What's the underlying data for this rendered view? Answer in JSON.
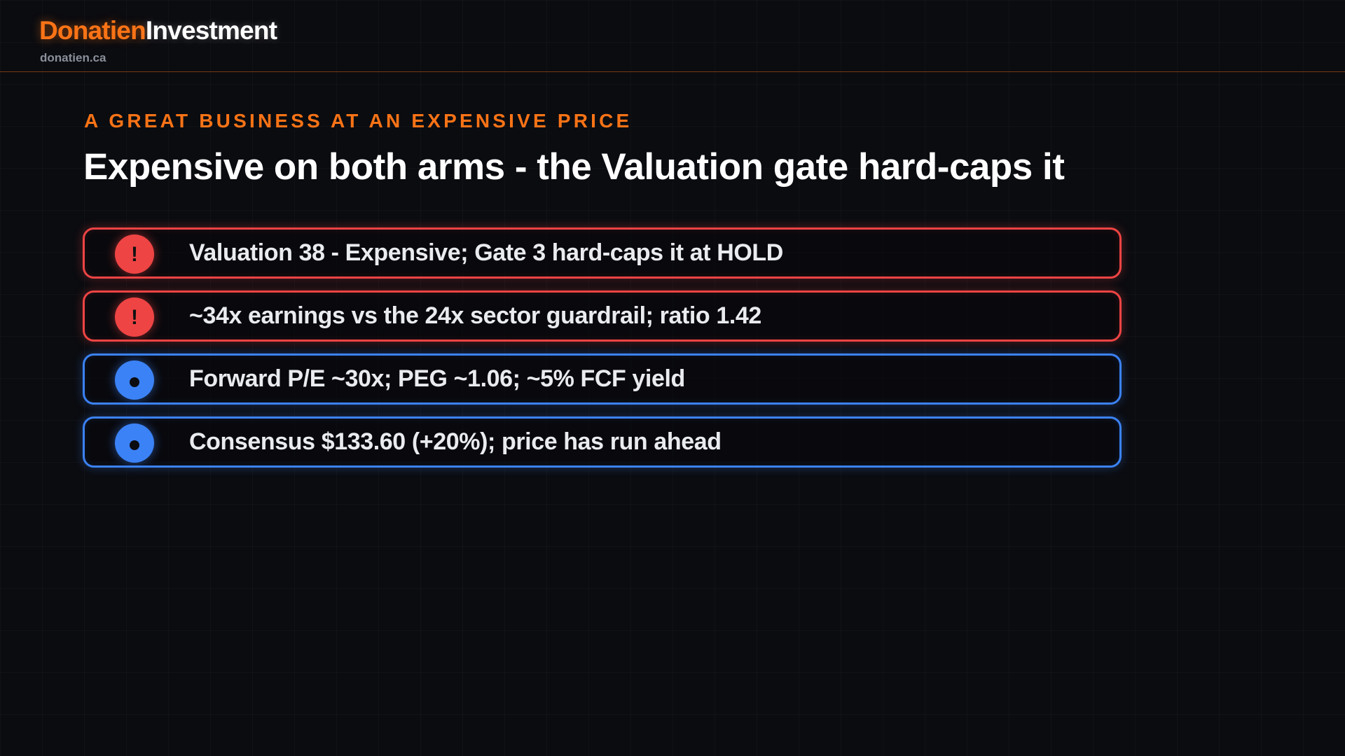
{
  "header": {
    "brand_part1": "Donatien",
    "brand_part2": "Investment",
    "site": "donatien.ca"
  },
  "kicker": "A GREAT BUSINESS AT AN EXPENSIVE PRICE",
  "title": "Expensive on both arms - the Valuation gate hard-caps it",
  "colors": {
    "accent": "#f97316",
    "alert": "#ef4444",
    "info": "#3b82f6",
    "background": "#0b0c10"
  },
  "items": [
    {
      "type": "alert",
      "icon": "exclamation-icon",
      "badge_text": "!",
      "text": "Valuation 38 - Expensive; Gate 3 hard-caps it at HOLD"
    },
    {
      "type": "alert",
      "icon": "exclamation-icon",
      "badge_text": "!",
      "text": "~34x earnings vs the 24x sector guardrail; ratio 1.42"
    },
    {
      "type": "info",
      "icon": "dot-icon",
      "text": "Forward P/E ~30x; PEG ~1.06; ~5% FCF yield"
    },
    {
      "type": "info",
      "icon": "dot-icon",
      "text": "Consensus $133.60 (+20%); price has run ahead"
    }
  ]
}
